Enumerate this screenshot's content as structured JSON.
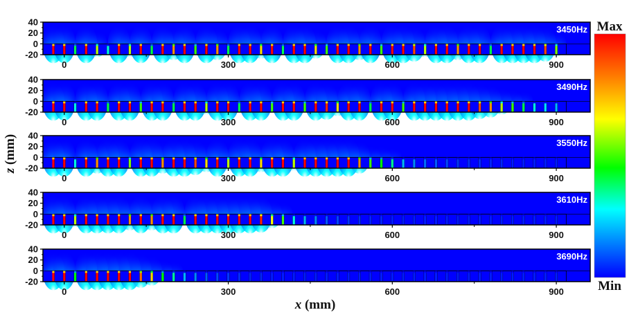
{
  "chart_data": {
    "type": "heatmap",
    "title": "",
    "xlabel_var": "x",
    "xlabel_unit": " (mm)",
    "ylabel_var": "z",
    "ylabel_unit": " (mm)",
    "xlim": [
      -39,
      962
    ],
    "ylim": [
      -20,
      40
    ],
    "xticks": [
      0,
      300,
      600,
      900
    ],
    "xticks_minor": [
      150,
      450,
      750
    ],
    "yticks": [
      40,
      20,
      0,
      -20
    ],
    "slot_start_x": -20,
    "slot_period": 20,
    "colorbar": {
      "max_label": "Max",
      "min_label": "Min",
      "stops": [
        "#0000ff",
        "#00ffff",
        "#00ff00",
        "#ffff00",
        "#ff8000",
        "#ff0000"
      ]
    },
    "background_color": "#0000ff",
    "panels": [
      {
        "label": "3450Hz",
        "amplitudes": [
          1,
          1,
          0.4,
          1,
          0.6,
          0.3,
          1,
          0.6,
          1,
          0.4,
          1,
          0.8,
          1,
          0.5,
          1,
          0.8,
          0.4,
          1,
          1,
          0.7,
          1,
          0.4,
          1,
          1,
          0.7,
          0.5,
          1,
          1,
          0.8,
          1,
          0.5,
          1,
          1,
          0.9,
          0.6,
          1,
          1,
          0.8,
          1,
          1,
          0.4,
          1,
          1,
          1,
          1,
          0.9,
          0.55
        ]
      },
      {
        "label": "3490Hz",
        "amplitudes": [
          1,
          1,
          0.3,
          1,
          1,
          0.4,
          1,
          1,
          0.5,
          1,
          1,
          0.4,
          1,
          1,
          0.6,
          1,
          1,
          0.4,
          1,
          1,
          0.5,
          1,
          1,
          0.5,
          1,
          0.95,
          0.7,
          1,
          1,
          0.4,
          1,
          1,
          0.5,
          1,
          1,
          1,
          1,
          1,
          1,
          0.9,
          0.8,
          0.6,
          0.5,
          0.4,
          0.3,
          0.25,
          0.2
        ]
      },
      {
        "label": "3550Hz",
        "amplitudes": [
          1,
          1,
          0.3,
          1,
          0.8,
          1,
          1,
          0.55,
          1,
          1,
          0.8,
          1,
          1,
          0.9,
          0.7,
          1,
          0.6,
          1,
          1,
          0.7,
          1,
          1,
          0.6,
          1,
          1,
          1,
          1,
          1,
          0.8,
          0.5,
          0.45,
          0.35,
          0.2,
          0.15,
          0.12,
          0.1,
          0.08,
          0.06,
          0.05,
          0.05,
          0.04,
          0.04,
          0.03,
          0.03,
          0.03,
          0.03,
          0.03
        ]
      },
      {
        "label": "3610Hz",
        "amplitudes": [
          1,
          1,
          0.6,
          1,
          1,
          1,
          1,
          0.8,
          1,
          0.8,
          1,
          1,
          0.4,
          1,
          1,
          1,
          1,
          1,
          1,
          0.95,
          0.65,
          0.5,
          0.3,
          0.2,
          0.15,
          0.1,
          0.08,
          0.06,
          0.05,
          0.04,
          0.04,
          0.03,
          0.03,
          0.03,
          0.03,
          0.03,
          0.03,
          0.03,
          0.03,
          0.03,
          0.03,
          0.03,
          0.03,
          0.03,
          0.03,
          0.03,
          0.03
        ]
      },
      {
        "label": "3690Hz",
        "amplitudes": [
          1,
          1,
          0.45,
          1,
          1,
          1,
          1,
          1,
          0.85,
          0.7,
          0.45,
          0.35,
          0.2,
          0.15,
          0.1,
          0.08,
          0.06,
          0.05,
          0.04,
          0.04,
          0.03,
          0.03,
          0.03,
          0.03,
          0.03,
          0.03,
          0.03,
          0.03,
          0.03,
          0.03,
          0.03,
          0.03,
          0.03,
          0.03,
          0.03,
          0.03,
          0.03,
          0.03,
          0.03,
          0.03,
          0.03,
          0.03,
          0.03,
          0.03,
          0.03,
          0.03,
          0.03
        ]
      }
    ]
  }
}
